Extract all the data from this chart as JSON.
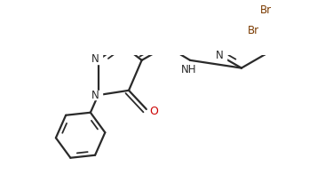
{
  "bg_color": "#ffffff",
  "line_color": "#2a2a2a",
  "bond_lw": 1.6,
  "dbo": 0.018,
  "figsize": [
    3.75,
    2.14
  ],
  "dpi": 100,
  "xlim": [
    0.0,
    1.0
  ],
  "ylim": [
    0.0,
    1.0
  ],
  "color_N": "#2a2a2a",
  "color_O": "#cc0000",
  "color_Br": "#7a3a00",
  "color_NH": "#2a2a2a"
}
